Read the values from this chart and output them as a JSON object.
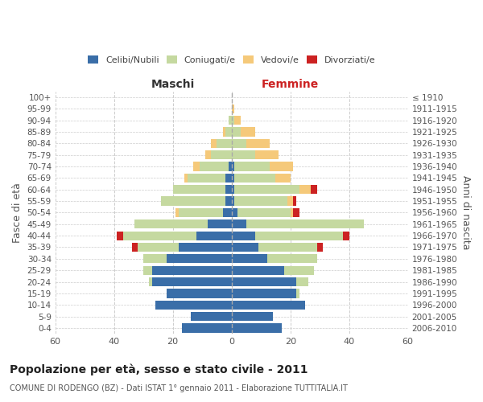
{
  "age_groups": [
    "0-4",
    "5-9",
    "10-14",
    "15-19",
    "20-24",
    "25-29",
    "30-34",
    "35-39",
    "40-44",
    "45-49",
    "50-54",
    "55-59",
    "60-64",
    "65-69",
    "70-74",
    "75-79",
    "80-84",
    "85-89",
    "90-94",
    "95-99",
    "100+"
  ],
  "birth_years": [
    "2006-2010",
    "2001-2005",
    "1996-2000",
    "1991-1995",
    "1986-1990",
    "1981-1985",
    "1976-1980",
    "1971-1975",
    "1966-1970",
    "1961-1965",
    "1956-1960",
    "1951-1955",
    "1946-1950",
    "1941-1945",
    "1936-1940",
    "1931-1935",
    "1926-1930",
    "1921-1925",
    "1916-1920",
    "1911-1915",
    "≤ 1910"
  ],
  "males": {
    "celibi": [
      17,
      14,
      26,
      22,
      27,
      27,
      22,
      18,
      12,
      8,
      3,
      2,
      2,
      2,
      1,
      0,
      0,
      0,
      0,
      0,
      0
    ],
    "coniugati": [
      0,
      0,
      0,
      0,
      1,
      3,
      8,
      14,
      25,
      25,
      15,
      22,
      18,
      13,
      10,
      7,
      5,
      2,
      1,
      0,
      0
    ],
    "vedovi": [
      0,
      0,
      0,
      0,
      0,
      0,
      0,
      0,
      0,
      0,
      1,
      0,
      0,
      1,
      2,
      2,
      2,
      1,
      0,
      0,
      0
    ],
    "divorziati": [
      0,
      0,
      0,
      0,
      0,
      0,
      0,
      2,
      2,
      0,
      0,
      0,
      0,
      0,
      0,
      0,
      0,
      0,
      0,
      0,
      0
    ]
  },
  "females": {
    "nubili": [
      17,
      14,
      25,
      22,
      22,
      18,
      12,
      9,
      8,
      5,
      2,
      1,
      1,
      1,
      1,
      0,
      0,
      0,
      0,
      0,
      0
    ],
    "coniugate": [
      0,
      0,
      0,
      1,
      4,
      10,
      17,
      20,
      30,
      40,
      18,
      18,
      22,
      14,
      12,
      8,
      5,
      3,
      1,
      0,
      0
    ],
    "vedove": [
      0,
      0,
      0,
      0,
      0,
      0,
      0,
      0,
      0,
      0,
      1,
      2,
      4,
      5,
      8,
      8,
      8,
      5,
      2,
      1,
      0
    ],
    "divorziate": [
      0,
      0,
      0,
      0,
      0,
      0,
      0,
      2,
      2,
      0,
      2,
      1,
      2,
      0,
      0,
      0,
      0,
      0,
      0,
      0,
      0
    ]
  },
  "colors": {
    "celibi": "#3a6ea8",
    "coniugati": "#c5d9a0",
    "vedovi": "#f5c97a",
    "divorziati": "#cc2222"
  },
  "title": "Popolazione per età, sesso e stato civile - 2011",
  "subtitle": "COMUNE DI RODENGO (BZ) - Dati ISTAT 1° gennaio 2011 - Elaborazione TUTTITALIA.IT",
  "xlabel_left": "Maschi",
  "xlabel_right": "Femmine",
  "ylabel_left": "Fasce di età",
  "ylabel_right": "Anni di nascita",
  "xlim": 60,
  "legend_labels": [
    "Celibi/Nubili",
    "Coniugati/e",
    "Vedovi/e",
    "Divorziati/e"
  ],
  "background_color": "#ffffff",
  "grid_color": "#cccccc"
}
